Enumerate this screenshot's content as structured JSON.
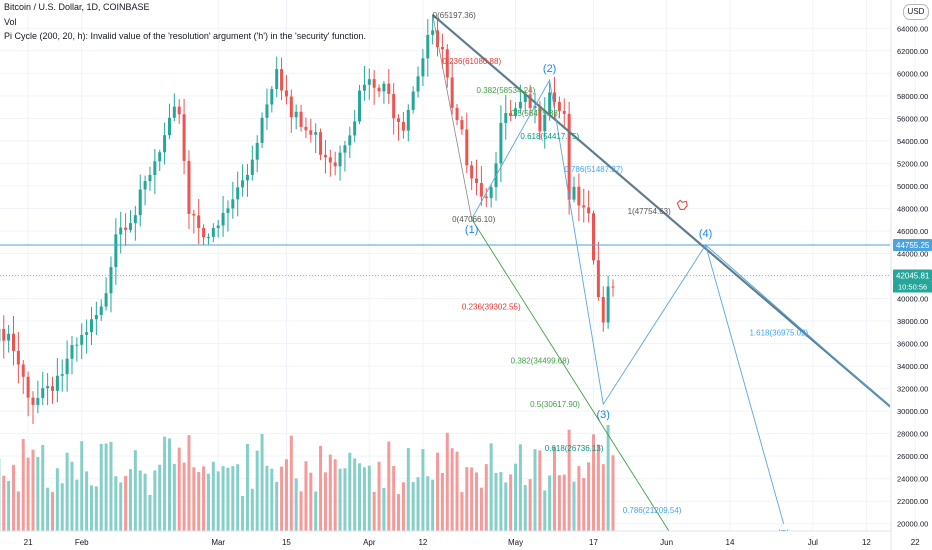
{
  "header": {
    "title": "Bitcoin / U.S. Dollar, 1D, COINBASE",
    "vol": "Vol",
    "pi_cycle": "Pi Cycle (200, 20, h): Invalid value of the 'resolution' argument ('h') in the 'security' function."
  },
  "currency_badge": "USD",
  "colors": {
    "up": "#26a69a",
    "down": "#ef5350",
    "vol_up": "#86cfc8",
    "vol_down": "#f49a99",
    "hline": "#4aa3df",
    "price_badge": "#26a69a",
    "level_badge": "#4aa3df",
    "trend": "#607d8b",
    "fib_red": "#e53935",
    "fib_green": "#43a047",
    "fib_teal": "#009688",
    "fib_blue": "#42a5f5",
    "fib_gray": "#555555",
    "wave": "#1e88e5",
    "wave_line": "#5ba6e0"
  },
  "chart_data": {
    "type": "candlestick",
    "y_axis": {
      "min": 19000,
      "max": 65800,
      "ticks": [
        20000,
        22000,
        24000,
        26000,
        28000,
        30000,
        32000,
        34000,
        36000,
        38000,
        40000,
        42000,
        44000,
        46000,
        48000,
        50000,
        52000,
        54000,
        56000,
        58000,
        60000,
        62000,
        64000
      ],
      "tick_labels": [
        "20000.00",
        "22000.00",
        "24000.00",
        "26000.00",
        "28000.00",
        "30000.00",
        "32000.00",
        "34000.00",
        "36000.00",
        "38000.00",
        "40000.00",
        "42000.00",
        "44000.00",
        "46000.00",
        "48000.00",
        "50000.00",
        "52000.00",
        "54000.00",
        "56000.00",
        "58000.00",
        "60000.00",
        "62000.00",
        "64000.00"
      ]
    },
    "x_axis": {
      "ticks": [
        "2021-01-21",
        "2021-02-01",
        "2021-03-01",
        "2021-03-15",
        "2021-04-01",
        "2021-04-12",
        "2021-05-01",
        "2021-05-17",
        "2021-06-01",
        "2021-06-14",
        "2021-07-01",
        "2021-07-12",
        "2021-07-22"
      ],
      "tick_labels": [
        "21",
        "Feb",
        "Mar",
        "15",
        "Apr",
        "12",
        "May",
        "17",
        "Jun",
        "14",
        "Jul",
        "12",
        "22"
      ]
    },
    "price_last": "42045.81",
    "countdown": "10:50:56",
    "horizontal_level": {
      "value": 44755.25,
      "label": "44755.25"
    },
    "anchors": [
      {
        "date": "2021-01-17",
        "price": 36200
      },
      {
        "date": "2021-01-21",
        "price": 31000
      },
      {
        "date": "2021-01-28",
        "price": 33500
      },
      {
        "date": "2021-02-05",
        "price": 38500
      },
      {
        "date": "2021-02-08",
        "price": 46500
      },
      {
        "date": "2021-02-13",
        "price": 48500
      },
      {
        "date": "2021-02-21",
        "price": 57000
      },
      {
        "date": "2021-02-23",
        "price": 48000
      },
      {
        "date": "2021-02-28",
        "price": 45300
      },
      {
        "date": "2021-03-07",
        "price": 51200
      },
      {
        "date": "2021-03-13",
        "price": 61200
      },
      {
        "date": "2021-03-16",
        "price": 56000
      },
      {
        "date": "2021-03-25",
        "price": 52500
      },
      {
        "date": "2021-03-31",
        "price": 58800
      },
      {
        "date": "2021-04-04",
        "price": 58200
      },
      {
        "date": "2021-04-08",
        "price": 56000
      },
      {
        "date": "2021-04-13",
        "price": 63500
      },
      {
        "date": "2021-04-16",
        "price": 61500
      },
      {
        "date": "2021-04-18",
        "price": 56000
      },
      {
        "date": "2021-04-22",
        "price": 51800
      },
      {
        "date": "2021-04-25",
        "price": 49000
      },
      {
        "date": "2021-04-28",
        "price": 55000
      },
      {
        "date": "2021-05-03",
        "price": 57000
      },
      {
        "date": "2021-05-06",
        "price": 56000
      },
      {
        "date": "2021-05-08",
        "price": 58900
      },
      {
        "date": "2021-05-11",
        "price": 56500
      },
      {
        "date": "2021-05-12",
        "price": 49500
      },
      {
        "date": "2021-05-16",
        "price": 46400
      },
      {
        "date": "2021-05-19",
        "price": 37000
      },
      {
        "date": "2021-05-20",
        "price": 40700
      },
      {
        "date": "2021-05-21",
        "price": 42000
      }
    ],
    "trendline": {
      "from": {
        "date": "2021-04-14",
        "price": 65197.36
      },
      "to": {
        "date": "2021-07-22",
        "price": 28500
      }
    },
    "fib_upper": [
      {
        "ratio": "0",
        "label": "0(65197.36)",
        "price": 65197.36,
        "date": "2021-04-14",
        "color_key": "fib_gray"
      },
      {
        "ratio": "0.236",
        "label": "0.236(61080.88)",
        "price": 61080.88,
        "date": "2021-04-16",
        "color_key": "fib_red"
      },
      {
        "ratio": "0.382",
        "label": "0.382(58534.24)",
        "price": 58534.24,
        "date": "2021-04-23",
        "color_key": "fib_green"
      },
      {
        "ratio": "0.5",
        "label": "0.5(56475.88)",
        "price": 56475.88,
        "date": "2021-04-30",
        "color_key": "fib_green"
      },
      {
        "ratio": "0.618",
        "label": "0.618(54417.75)",
        "price": 54417.75,
        "date": "2021-05-02",
        "color_key": "fib_teal"
      },
      {
        "ratio": "0.786",
        "label": "0.786(51487.37)",
        "price": 51487.37,
        "date": "2021-05-11",
        "color_key": "fib_blue"
      },
      {
        "ratio": "1",
        "label": "1(47754.63)",
        "price": 47754.63,
        "date": "2021-05-24",
        "color_key": "fib_gray"
      },
      {
        "ratio": "0",
        "label": "0(47066.10)",
        "price": 47066.1,
        "date": "2021-04-18",
        "color_key": "fib_gray"
      }
    ],
    "fib_lower": [
      {
        "ratio": "0.236",
        "label": "0.236(39302.55)",
        "price": 39302.55,
        "date": "2021-04-20",
        "color_key": "fib_red"
      },
      {
        "ratio": "0.382",
        "label": "0.382(34499.68)",
        "price": 34499.68,
        "date": "2021-04-30",
        "color_key": "fib_green"
      },
      {
        "ratio": "0.5",
        "label": "0.5(30617.90)",
        "price": 30617.9,
        "date": "2021-05-04",
        "color_key": "fib_green"
      },
      {
        "ratio": "0.618",
        "label": "0.618(26736.13)",
        "price": 26736.13,
        "date": "2021-05-07",
        "color_key": "fib_teal"
      },
      {
        "ratio": "0.786",
        "label": "0.786(21209.54)",
        "price": 21209.54,
        "date": "2021-05-23",
        "color_key": "fib_blue"
      },
      {
        "ratio": "1.618",
        "label": "1.618(36975.02)",
        "price": 36975.02,
        "date": "2021-06-18",
        "color_key": "fib_blue"
      }
    ],
    "waves": [
      {
        "label": "(1)",
        "date": "2021-04-22",
        "price": 47066.1
      },
      {
        "label": "(2)",
        "date": "2021-05-08",
        "price": 59400
      },
      {
        "label": "(3)",
        "date": "2021-05-19",
        "price": 30617.9
      },
      {
        "label": "(4)",
        "date": "2021-06-09",
        "price": 44755.25
      },
      {
        "label": "(5)",
        "date": "2021-06-25",
        "price": 20000
      }
    ],
    "wave_path": [
      {
        "date": "2021-04-22",
        "price": 47066.1
      },
      {
        "date": "2021-05-08",
        "price": 59400
      },
      {
        "date": "2021-05-19",
        "price": 30617.9
      },
      {
        "date": "2021-06-09",
        "price": 44755.25
      },
      {
        "date": "2021-06-25",
        "price": 20000
      }
    ],
    "fib_connector_upper": {
      "from": {
        "date": "2021-04-14",
        "price": 65197.36
      },
      "to": {
        "date": "2021-04-22",
        "price": 47066.1
      }
    },
    "fib_connector_lower": {
      "from": {
        "date": "2021-04-22",
        "price": 47066.1
      },
      "to": {
        "date": "2021-06-02",
        "price": 19000
      }
    }
  }
}
